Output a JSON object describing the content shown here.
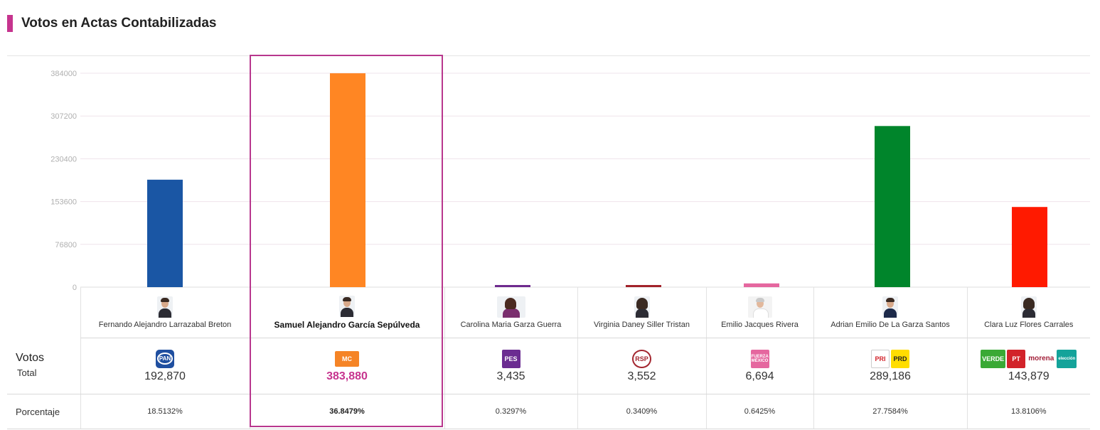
{
  "page": {
    "title": "Votos en Actas Contabilizadas",
    "accent_color": "#c6348e"
  },
  "chart_data": {
    "type": "bar",
    "title": "Votos en Actas Contabilizadas",
    "ylim": [
      0,
      384000
    ],
    "yticks": [
      "0",
      "76800",
      "153600",
      "230400",
      "307200",
      "384000"
    ],
    "categories": [
      "Fernando Alejandro Larrazabal Breton",
      "Samuel Alejandro García Sepúlveda",
      "Carolina Maria Garza Guerra",
      "Virginia Daney Siller Tristan",
      "Emilio Jacques Rivera",
      "Adrian Emilio De La Garza Santos",
      "Clara Luz Flores Carrales"
    ],
    "values": [
      192870,
      383880,
      3435,
      3552,
      6694,
      289186,
      143879
    ],
    "colors": [
      "#1a56a4",
      "#ff8623",
      "#6e2a8e",
      "#a2222a",
      "#e5679f",
      "#00852b",
      "#ff1a00"
    ],
    "grid": true
  },
  "table": {
    "votes_label": "Votos",
    "total_label": "Total",
    "pct_label": "Porcentaje",
    "candidates": [
      {
        "name": "Fernando Alejandro Larrazabal Breton",
        "votes": "192,870",
        "pct": "18.5132%",
        "logos": [
          "PAN"
        ]
      },
      {
        "name": "Samuel Alejandro García Sepúlveda",
        "votes": "383,880",
        "pct": "36.8479%",
        "logos": [
          "MC"
        ]
      },
      {
        "name": "Carolina Maria Garza Guerra",
        "votes": "3,435",
        "pct": "0.3297%",
        "logos": [
          "PES"
        ]
      },
      {
        "name": "Virginia Daney Siller Tristan",
        "votes": "3,552",
        "pct": "0.3409%",
        "logos": [
          "RSP"
        ]
      },
      {
        "name": "Emilio Jacques Rivera",
        "votes": "6,694",
        "pct": "0.6425%",
        "logos": [
          "FUERZA MÉXICO"
        ]
      },
      {
        "name": "Adrian Emilio De La Garza Santos",
        "votes": "289,186",
        "pct": "27.7584%",
        "logos": [
          "PRI",
          "PRD"
        ]
      },
      {
        "name": "Clara Luz Flores Carrales",
        "votes": "143,879",
        "pct": "13.8106%",
        "logos": [
          "VERDE",
          "PT",
          "morena",
          "elección"
        ]
      }
    ]
  },
  "highlight": {
    "winner_index": 1,
    "color": "#b8378d"
  }
}
